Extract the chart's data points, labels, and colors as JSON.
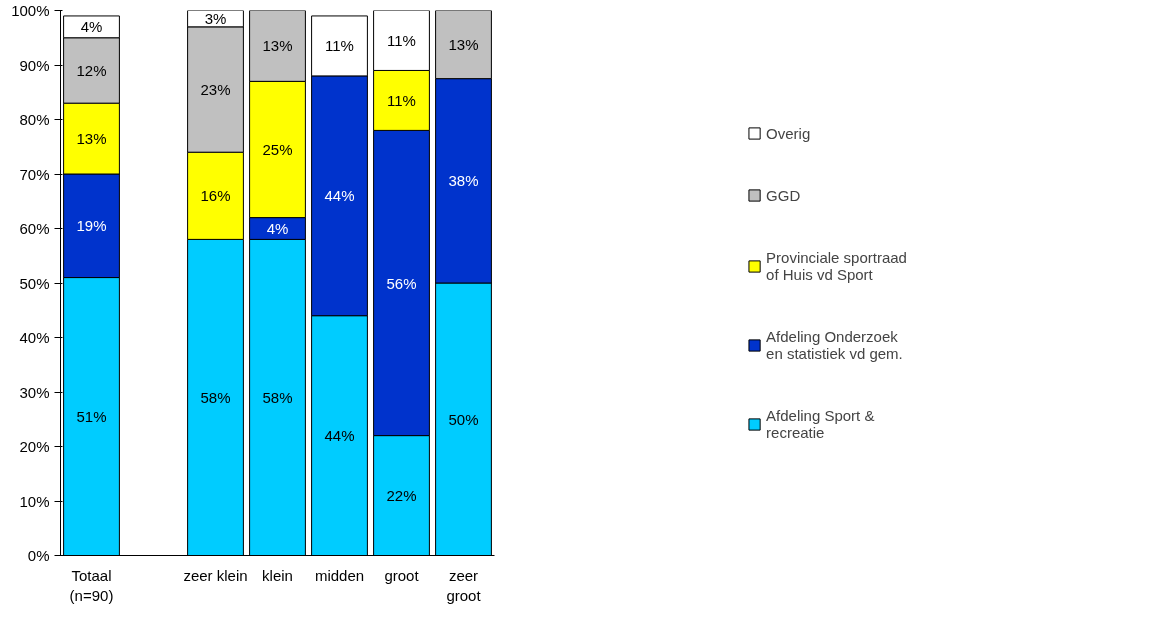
{
  "chart_data": {
    "type": "bar",
    "stacked": true,
    "categories": [
      "Totaal\n(n=90)",
      null,
      "zeer klein",
      "klein",
      "midden",
      "groot",
      "zeer\ngroot"
    ],
    "series": [
      {
        "name": "Afdeling Sport &\nrecreatie",
        "color": "#00ccff",
        "values": [
          51,
          null,
          58,
          58,
          44,
          22,
          50
        ],
        "value_labels": [
          "51%",
          null,
          "58%",
          "58%",
          "44%",
          "22%",
          "50%"
        ]
      },
      {
        "name": "Afdeling Onderzoek\nen statistiek vd gem.",
        "color": "#0033cc",
        "values": [
          19,
          null,
          null,
          4,
          44,
          56,
          37.5
        ],
        "value_labels": [
          "19%",
          null,
          null,
          "4%",
          "44%",
          "56%",
          "38%"
        ]
      },
      {
        "name": "Provinciale sportraad\nof Huis vd Sport",
        "color": "#ffff00",
        "values": [
          13,
          null,
          16,
          25,
          null,
          11,
          null
        ],
        "value_labels": [
          "13%",
          null,
          "16%",
          "25%",
          null,
          "11%",
          null
        ]
      },
      {
        "name": "GGD",
        "color": "#c0c0c0",
        "values": [
          12,
          null,
          23,
          13,
          null,
          null,
          12.5
        ],
        "value_labels": [
          "12%",
          null,
          "23%",
          "13%",
          null,
          null,
          "13%"
        ]
      },
      {
        "name": "Overig",
        "color": "#ffffff",
        "values": [
          4,
          null,
          3,
          null,
          11,
          11,
          null
        ],
        "value_labels": [
          "4%",
          null,
          "3%",
          null,
          "11%",
          "11%",
          null
        ]
      }
    ],
    "ylim": [
      0,
      100
    ],
    "yticks": [
      {
        "value": 0,
        "label": "0%"
      },
      {
        "value": 10,
        "label": "10%"
      },
      {
        "value": 20,
        "label": "20%"
      },
      {
        "value": 30,
        "label": "30%"
      },
      {
        "value": 40,
        "label": "40%"
      },
      {
        "value": 50,
        "label": "50%"
      },
      {
        "value": 60,
        "label": "60%"
      },
      {
        "value": 70,
        "label": "70%"
      },
      {
        "value": 80,
        "label": "80%"
      },
      {
        "value": 90,
        "label": "90%"
      },
      {
        "value": 100,
        "label": "100%"
      }
    ],
    "grid": false,
    "legend": "right"
  }
}
